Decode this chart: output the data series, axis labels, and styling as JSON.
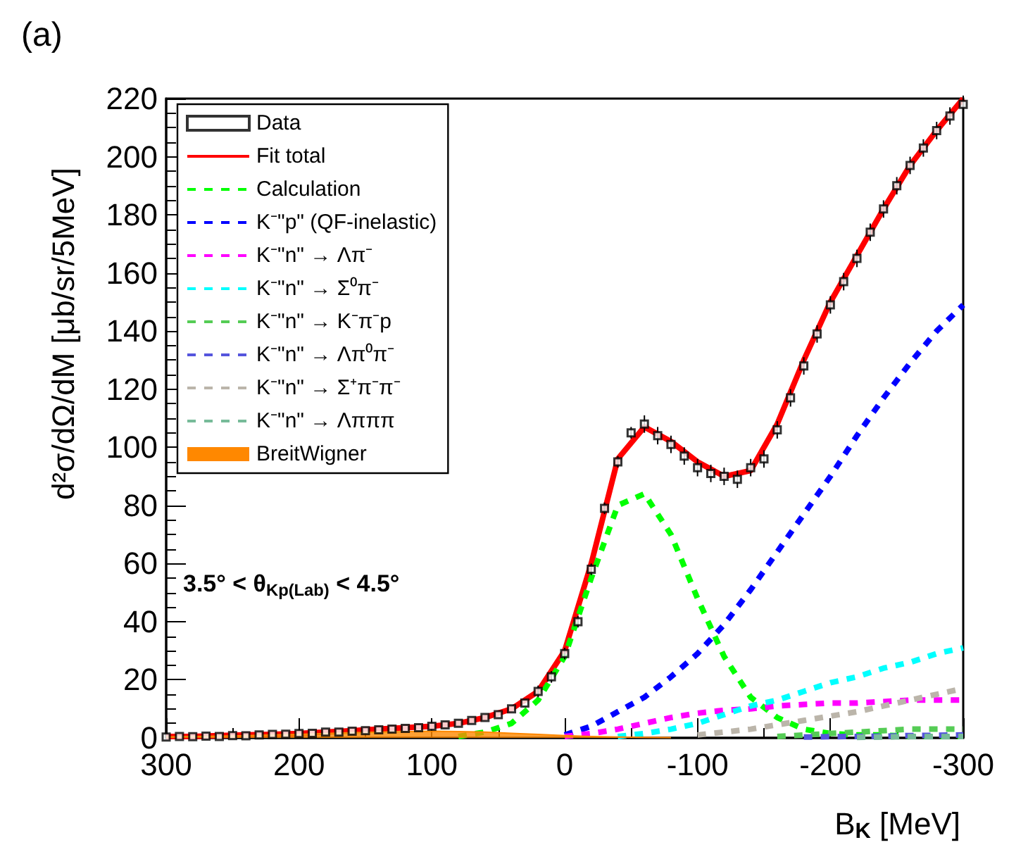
{
  "chart_data": {
    "type": "line",
    "title": "(a)",
    "xlabel": "B$_{K}$ [MeV]",
    "ylabel": "d²σ/dΩ/dM [μb/sr/5MeV]",
    "annotations": [
      "3.5° < θ$_{Kp(Lab)}$ < 4.5°"
    ],
    "xlim": [
      300,
      -300
    ],
    "xticks": [
      300,
      200,
      100,
      0,
      -100,
      -200,
      -300
    ],
    "ylim": [
      0,
      220
    ],
    "yticks": [
      0,
      20,
      40,
      60,
      80,
      100,
      120,
      140,
      160,
      180,
      200,
      220
    ],
    "grid": false,
    "legend": "top left",
    "marker": "none",
    "x": [
      300,
      280,
      260,
      240,
      220,
      200,
      180,
      160,
      140,
      120,
      100,
      80,
      60,
      40,
      20,
      0,
      -20,
      -40,
      -60,
      -80,
      -100,
      -120,
      -140,
      -160,
      -180,
      -200,
      -220,
      -240,
      -260,
      -280,
      -300
    ],
    "series": [
      {
        "name": "Data",
        "type": "scatter",
        "marker": "square",
        "color": "#000000",
        "x": [
          300,
          290,
          280,
          270,
          260,
          250,
          240,
          230,
          220,
          210,
          200,
          190,
          180,
          170,
          160,
          150,
          140,
          130,
          120,
          110,
          100,
          90,
          80,
          70,
          60,
          50,
          40,
          30,
          20,
          10,
          0,
          -10,
          -20,
          -30,
          -40,
          -50,
          -60,
          -70,
          -80,
          -90,
          -100,
          -110,
          -120,
          -130,
          -140,
          -150,
          -160,
          -170,
          -180,
          -190,
          -200,
          -210,
          -220,
          -230,
          -240,
          -250,
          -260,
          -270,
          -280,
          -290,
          -300
        ],
        "values": [
          0.3,
          0.5,
          0.4,
          0.6,
          0.5,
          0.8,
          0.7,
          1,
          1.2,
          1.3,
          1.5,
          1.6,
          2,
          2,
          2.3,
          2.5,
          2.8,
          3,
          3.3,
          3.5,
          4,
          4.5,
          5,
          6,
          7,
          8,
          10,
          12,
          16,
          21,
          29,
          40,
          58,
          79,
          95,
          105,
          108,
          104,
          101,
          97,
          93,
          91,
          90,
          89,
          93,
          96,
          106,
          117,
          128,
          139,
          149,
          157,
          165,
          174,
          182,
          190,
          197,
          203,
          209,
          214,
          218
        ],
        "errors": [
          null,
          null,
          null,
          null,
          null,
          null,
          null,
          null,
          null,
          null,
          null,
          null,
          null,
          null,
          null,
          null,
          null,
          null,
          null,
          null,
          null,
          null,
          null,
          null,
          null,
          null,
          null,
          null,
          2,
          2,
          2,
          2,
          2,
          2,
          2,
          2,
          3,
          3,
          3,
          3,
          3,
          3,
          3,
          3,
          3,
          3,
          3,
          3,
          3,
          3,
          3,
          3,
          3,
          3,
          3,
          3,
          3,
          3,
          3,
          3,
          3
        ]
      },
      {
        "name": "Fit total",
        "line_style": "solid",
        "color": "#ff0000",
        "values": [
          0.5,
          0.5,
          0.8,
          1,
          1.2,
          1.5,
          2,
          2.5,
          3,
          3.5,
          4,
          5,
          7,
          10,
          16,
          30,
          60,
          96,
          107,
          102,
          95,
          90,
          92,
          108,
          130,
          150,
          166,
          182,
          197,
          209,
          220
        ]
      },
      {
        "name": "Calculation",
        "type": "line",
        "line_style": "dashed",
        "color": "#00ff00",
        "values": [
          null,
          null,
          null,
          null,
          null,
          null,
          null,
          null,
          null,
          null,
          null,
          0.5,
          2,
          5,
          13,
          28,
          55,
          80,
          84,
          70,
          48,
          28,
          14,
          7,
          3,
          1.5,
          1,
          1,
          0.5,
          0.5,
          0.5
        ]
      },
      {
        "name": "K⁻\"p\" (QF-inelastic)",
        "type": "line",
        "line_style": "dashed",
        "color": "#0000ff",
        "values": [
          null,
          null,
          null,
          null,
          null,
          null,
          null,
          null,
          null,
          null,
          null,
          null,
          null,
          null,
          null,
          1,
          4,
          9,
          14,
          21,
          29,
          39,
          51,
          64,
          77,
          90,
          104,
          117,
          129,
          140,
          149
        ]
      },
      {
        "name": "K⁻\"n\" → Λπ⁻",
        "type": "line",
        "line_style": "dashed",
        "color": "#ff00ff",
        "values": [
          null,
          null,
          null,
          null,
          null,
          null,
          null,
          null,
          null,
          null,
          null,
          null,
          null,
          null,
          null,
          0.5,
          1.5,
          3,
          5,
          7,
          8.5,
          9.5,
          10,
          11,
          11.5,
          12,
          12,
          12.5,
          13,
          13,
          13
        ]
      },
      {
        "name": "K⁻\"n\" → Σ⁰π⁻",
        "type": "line",
        "line_style": "dashed",
        "color": "#00ffff",
        "values": [
          null,
          null,
          null,
          null,
          null,
          null,
          null,
          null,
          null,
          null,
          null,
          null,
          null,
          null,
          null,
          null,
          null,
          0.5,
          1.5,
          3,
          5,
          8,
          11,
          13,
          16,
          19,
          21,
          24,
          26,
          29,
          31
        ]
      },
      {
        "name": "K⁻\"n\" → K⁻π⁻p",
        "type": "line",
        "line_style": "dashed",
        "color": "#55cc55",
        "values": [
          null,
          null,
          null,
          null,
          null,
          null,
          null,
          null,
          null,
          null,
          null,
          null,
          null,
          null,
          null,
          null,
          null,
          null,
          null,
          null,
          null,
          null,
          null,
          0.5,
          1,
          1.5,
          2,
          2.5,
          3,
          3,
          3
        ]
      },
      {
        "name": "K⁻\"n\" → Λπ⁰π⁻",
        "type": "line",
        "line_style": "dashed",
        "color": "#5555dd",
        "values": [
          null,
          null,
          null,
          null,
          null,
          null,
          null,
          null,
          null,
          null,
          null,
          null,
          null,
          null,
          null,
          null,
          null,
          null,
          null,
          null,
          null,
          null,
          null,
          null,
          0.3,
          0.4,
          0.5,
          0.6,
          0.8,
          0.9,
          1
        ]
      },
      {
        "name": "K⁻\"n\" → Σ⁺π⁻π⁻",
        "type": "line",
        "line_style": "dashed",
        "color": "#bbb5aa",
        "values": [
          null,
          null,
          null,
          null,
          null,
          null,
          null,
          null,
          null,
          null,
          null,
          null,
          null,
          null,
          null,
          null,
          null,
          null,
          null,
          null,
          1,
          2,
          3,
          4.5,
          6,
          7.5,
          9,
          11,
          13,
          15,
          17
        ]
      },
      {
        "name": "K⁻\"n\" → Λπππ",
        "type": "line",
        "line_style": "dashed",
        "color": "#77bb99",
        "values": [
          null,
          null,
          null,
          null,
          null,
          null,
          null,
          null,
          null,
          null,
          null,
          null,
          null,
          null,
          null,
          null,
          null,
          null,
          null,
          null,
          null,
          null,
          null,
          null,
          null,
          null,
          0.2,
          0.3,
          0.4,
          0.4,
          0.5
        ]
      },
      {
        "name": "BreitWigner",
        "type": "area",
        "line_style": "solid",
        "color": "#ff8800",
        "values": [
          0.3,
          0.5,
          0.6,
          0.8,
          1,
          1.2,
          1.5,
          1.8,
          2,
          2.2,
          2.3,
          2.2,
          2,
          1.6,
          1.2,
          0.8,
          0.5,
          0.3,
          0.2,
          0.1,
          null,
          null,
          null,
          null,
          null,
          null,
          null,
          null,
          null,
          null,
          null
        ]
      }
    ]
  }
}
